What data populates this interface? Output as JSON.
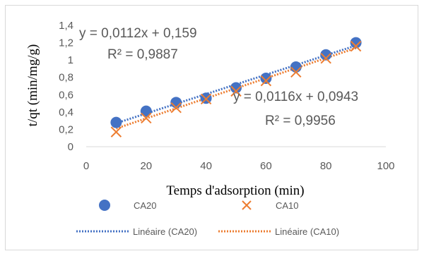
{
  "chart_data": {
    "type": "scatter",
    "xlabel": "Temps d'adsorption (min)",
    "ylabel": "t/qt (min/mg/g)",
    "xlim": [
      0,
      100
    ],
    "ylim": [
      0,
      1.4
    ],
    "x_ticks": [
      "0",
      "20",
      "40",
      "60",
      "80",
      "100"
    ],
    "y_ticks": [
      "0",
      "0,2",
      "0,4",
      "0,6",
      "0,8",
      "1",
      "1,2",
      "1,4"
    ],
    "grid": false,
    "legend_position": "bottom",
    "series": [
      {
        "name": "CA20",
        "marker": "circle",
        "color": "#4472C4",
        "x": [
          10,
          20,
          30,
          40,
          50,
          60,
          70,
          80,
          90
        ],
        "y": [
          0.28,
          0.41,
          0.51,
          0.56,
          0.68,
          0.79,
          0.92,
          1.06,
          1.2
        ]
      },
      {
        "name": "CA10",
        "marker": "x",
        "color": "#ED7D31",
        "x": [
          10,
          20,
          30,
          40,
          50,
          60,
          70,
          80,
          90
        ],
        "y": [
          0.17,
          0.33,
          0.45,
          0.55,
          0.64,
          0.76,
          0.86,
          1.02,
          1.16
        ]
      }
    ],
    "trendlines": [
      {
        "name": "Linéaire (CA20)",
        "color": "#4472C4",
        "slope": 0.0112,
        "intercept": 0.159,
        "equation": "y = 0,0112x + 0,159",
        "r2": "R² = 0,9887"
      },
      {
        "name": "Linéaire (CA10)",
        "color": "#ED7D31",
        "slope": 0.0116,
        "intercept": 0.0943,
        "equation": "y = 0,0116x + 0,0943",
        "r2": "R² = 0,9956"
      }
    ]
  }
}
